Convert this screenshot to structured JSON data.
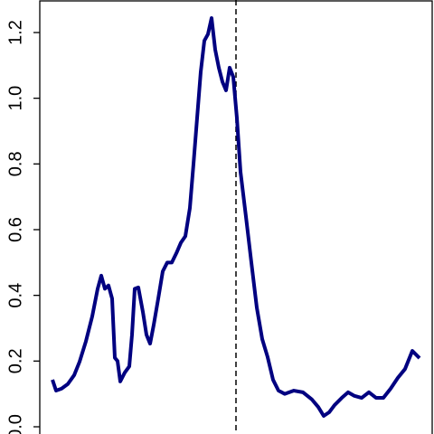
{
  "chart_data": {
    "type": "line",
    "x": [
      14,
      18,
      24,
      31,
      38,
      44,
      51,
      58,
      64,
      68,
      72,
      76,
      80,
      83,
      86,
      89,
      94,
      99,
      102,
      105,
      109,
      114,
      118,
      122,
      126,
      131,
      136,
      141,
      146,
      151,
      156,
      161,
      166,
      170,
      174,
      178,
      182,
      186,
      190,
      194,
      198,
      202,
      206,
      210,
      214,
      218,
      222,
      228,
      234,
      240,
      246,
      252,
      258,
      264,
      271,
      281,
      291,
      301,
      308,
      314,
      320,
      326,
      334,
      341,
      348,
      356,
      364,
      372,
      380,
      388,
      396,
      404,
      412,
      420
    ],
    "series": [
      {
        "color": "#000080",
        "values": [
          0.143,
          0.11,
          0.116,
          0.13,
          0.157,
          0.198,
          0.26,
          0.336,
          0.42,
          0.46,
          0.42,
          0.43,
          0.39,
          0.21,
          0.2,
          0.138,
          0.165,
          0.184,
          0.28,
          0.42,
          0.424,
          0.35,
          0.28,
          0.253,
          0.31,
          0.39,
          0.473,
          0.5,
          0.5,
          0.528,
          0.56,
          0.58,
          0.666,
          0.8,
          0.94,
          1.08,
          1.175,
          1.195,
          1.244,
          1.148,
          1.093,
          1.05,
          1.024,
          1.093,
          1.065,
          0.94,
          0.776,
          0.64,
          0.5,
          0.363,
          0.267,
          0.212,
          0.143,
          0.11,
          0.1,
          0.11,
          0.105,
          0.083,
          0.06,
          0.033,
          0.044,
          0.066,
          0.088,
          0.105,
          0.094,
          0.088,
          0.105,
          0.088,
          0.088,
          0.116,
          0.149,
          0.176,
          0.231,
          0.209
        ]
      }
    ],
    "xlim": [
      0,
      434
    ],
    "ylim": [
      -0.022,
      1.299
    ],
    "yticks": [
      {
        "value": 0,
        "label": "0.0"
      },
      0.2,
      0.4,
      0.6,
      0.8,
      {
        "value": 1,
        "label": "1.0"
      },
      1.2
    ],
    "vline": 217
  }
}
